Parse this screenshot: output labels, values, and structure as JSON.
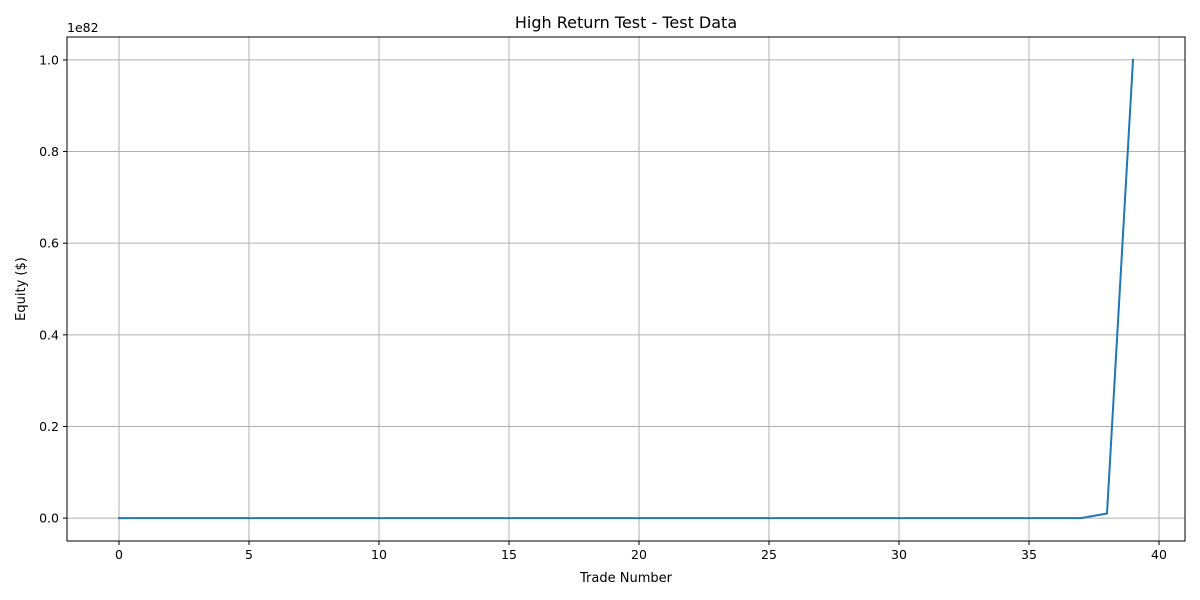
{
  "chart_data": {
    "type": "line",
    "title": "High Return Test - Test Data",
    "xlabel": "Trade Number",
    "ylabel": "Equity ($)",
    "offset_text": "1e82",
    "xlim": [
      -2,
      41
    ],
    "ylim": [
      -0.05,
      1.05
    ],
    "y_scale_multiplier": "1e82",
    "x_ticks": [
      0,
      5,
      10,
      15,
      20,
      25,
      30,
      35,
      40
    ],
    "x_tick_labels": [
      "0",
      "5",
      "10",
      "15",
      "20",
      "25",
      "30",
      "35",
      "40"
    ],
    "y_ticks": [
      0.0,
      0.2,
      0.4,
      0.6,
      0.8,
      1.0
    ],
    "y_tick_labels": [
      "0.0",
      "0.2",
      "0.4",
      "0.6",
      "0.8",
      "1.0"
    ],
    "grid": true,
    "series": [
      {
        "color": "#1f77b4",
        "x": [
          0,
          1,
          2,
          3,
          4,
          5,
          6,
          7,
          8,
          9,
          10,
          11,
          12,
          13,
          14,
          15,
          16,
          17,
          18,
          19,
          20,
          21,
          22,
          23,
          24,
          25,
          26,
          27,
          28,
          29,
          30,
          31,
          32,
          33,
          34,
          35,
          36,
          37,
          38,
          39
        ],
        "y": [
          0,
          0,
          0,
          0,
          0,
          0,
          0,
          0,
          0,
          0,
          0,
          0,
          0,
          0,
          0,
          0,
          0,
          0,
          0,
          0,
          0,
          0,
          0,
          0,
          0,
          0,
          0,
          0,
          0,
          0,
          0,
          0,
          0,
          0,
          0,
          0,
          0,
          0,
          0.01,
          1.0
        ]
      }
    ]
  }
}
